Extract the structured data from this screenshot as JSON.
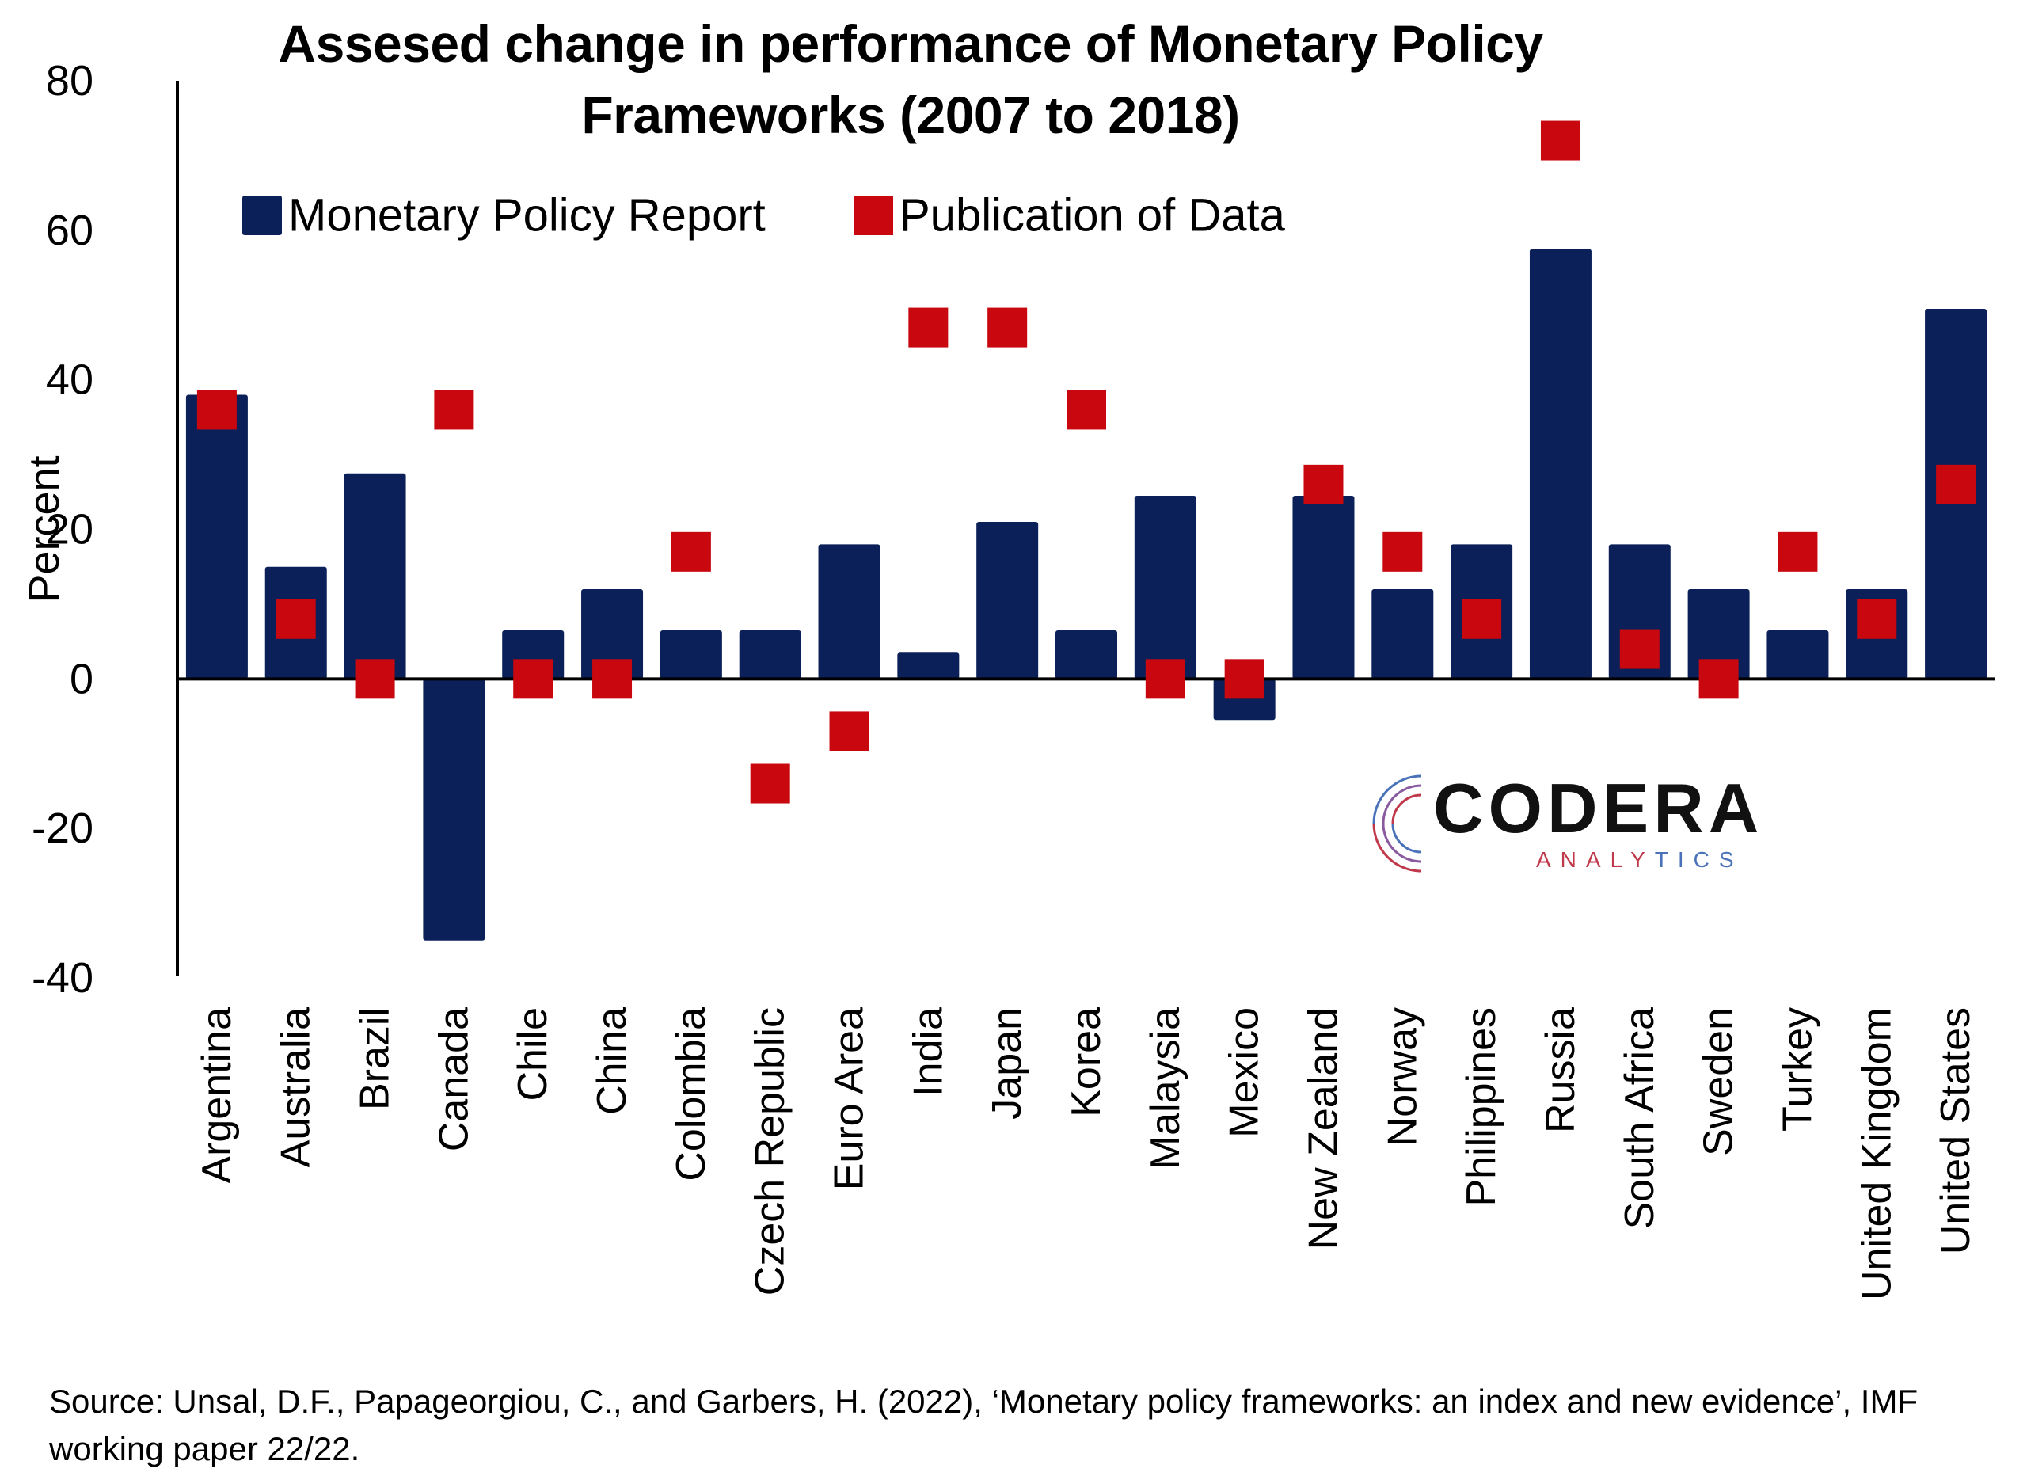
{
  "chart_data": {
    "type": "bar",
    "title": "Assesed change in performance of Monetary Policy Frameworks (2007 to 2018)",
    "ylabel": "Percent",
    "ylim": [
      -40,
      80
    ],
    "yticks": [
      -40,
      -20,
      0,
      20,
      40,
      60,
      80
    ],
    "legend_position": "top-left",
    "categories": [
      "Argentina",
      "Australia",
      "Brazil",
      "Canada",
      "Chile",
      "China",
      "Colombia",
      "Czech Republic",
      "Euro Area",
      "India",
      "Japan",
      "Korea",
      "Malaysia",
      "Mexico",
      "New Zealand",
      "Norway",
      "Philippines",
      "Russia",
      "South Africa",
      "Sweden",
      "Turkey",
      "United Kingdom",
      "United States"
    ],
    "series": [
      {
        "name": "Monetary Policy Report",
        "type": "bar",
        "color": "#0b2058",
        "values": [
          38,
          15,
          27.5,
          -35,
          6.5,
          12,
          6.5,
          6.5,
          18,
          3.5,
          21,
          6.5,
          24.5,
          -5.5,
          24.5,
          12,
          18,
          57.5,
          18,
          12,
          6.5,
          12,
          49.5
        ]
      },
      {
        "name": "Publication of Data",
        "type": "scatter",
        "marker": "square",
        "color": "#c8070f",
        "values": [
          36,
          8,
          0,
          36,
          0,
          0,
          17,
          -14,
          -7,
          47,
          47,
          36,
          0,
          0,
          26,
          17,
          8,
          72,
          4,
          0,
          17,
          8,
          26
        ]
      }
    ]
  },
  "source": "Source: Unsal, D.F., Papageorgiou, C., and Garbers, H. (2022), ‘Monetary policy frameworks: an index and new evidence’, IMF working paper 22/22.",
  "logo": {
    "name": "CODERA",
    "subtitle_a": "ANALY",
    "subtitle_b": "TICS"
  }
}
